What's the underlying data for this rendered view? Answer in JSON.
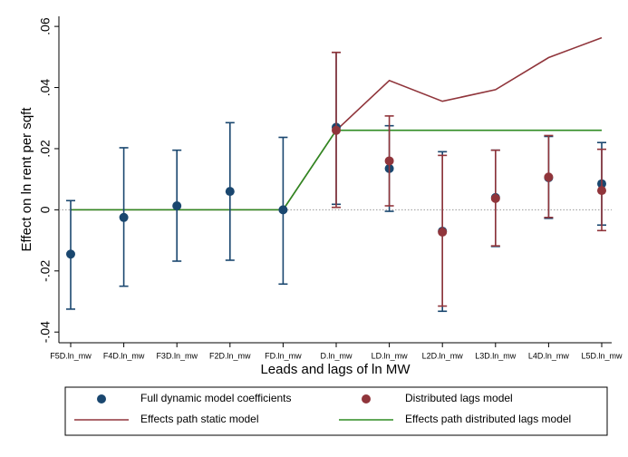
{
  "chart_data": {
    "type": "scatter",
    "xlabel": "Leads and lags of ln MW",
    "ylabel": "Effect on ln rent per sqft",
    "categories": [
      "F5D.ln_mw",
      "F4D.ln_mw",
      "F3D.ln_mw",
      "F2D.ln_mw",
      "FD.ln_mw",
      "D.ln_mw",
      "LD.ln_mw",
      "L2D.ln_mw",
      "L3D.ln_mw",
      "L4D.ln_mw",
      "L5D.ln_mw"
    ],
    "ylim": [
      -0.0435,
      0.0633
    ],
    "yticks": [
      {
        "value": -0.04,
        "label": "-.04"
      },
      {
        "value": -0.02,
        "label": "-.02"
      },
      {
        "value": 0,
        "label": "0"
      },
      {
        "value": 0.02,
        "label": ".02"
      },
      {
        "value": 0.04,
        "label": ".04"
      },
      {
        "value": 0.06,
        "label": ".06"
      }
    ],
    "zero_line": true,
    "series": [
      {
        "name": "Full dynamic model coefficients",
        "style": "marker",
        "color": "#1a476f",
        "values": [
          -0.0145,
          -0.0025,
          0.0013,
          0.006,
          0,
          0.027,
          0.0135,
          -0.007,
          0.004,
          0.0105,
          0.0085
        ],
        "lower": [
          -0.0325,
          -0.025,
          -0.0168,
          -0.0165,
          -0.0243,
          0.0018,
          -0.0005,
          -0.0332,
          -0.012,
          -0.0028,
          -0.005
        ],
        "upper": [
          0.003,
          0.0203,
          0.0195,
          0.0285,
          0.0237,
          0.0515,
          0.0275,
          0.019,
          0.0195,
          0.024,
          0.022
        ]
      },
      {
        "name": "Distributed lags model",
        "style": "marker",
        "color": "#90353b",
        "values": [
          null,
          null,
          null,
          null,
          null,
          0.026,
          0.016,
          -0.0073,
          0.0037,
          0.0107,
          0.0063
        ],
        "lower": [
          null,
          null,
          null,
          null,
          null,
          0.0008,
          0.0013,
          -0.0315,
          -0.0118,
          -0.0025,
          -0.0068
        ],
        "upper": [
          null,
          null,
          null,
          null,
          null,
          0.0515,
          0.0307,
          0.0178,
          0.0195,
          0.0243,
          0.0198
        ]
      },
      {
        "name": "Effects path static model",
        "style": "line",
        "color": "#90353b",
        "values": [
          0,
          0,
          0,
          0,
          0,
          0.026,
          0.0423,
          0.0355,
          0.0393,
          0.0498,
          0.0563
        ]
      },
      {
        "name": "Effects path distributed lags model",
        "style": "line",
        "color": "#2e8b22",
        "values": [
          0,
          0,
          0,
          0,
          0,
          0.026,
          0.026,
          0.026,
          0.026,
          0.026,
          0.026
        ]
      }
    ]
  }
}
